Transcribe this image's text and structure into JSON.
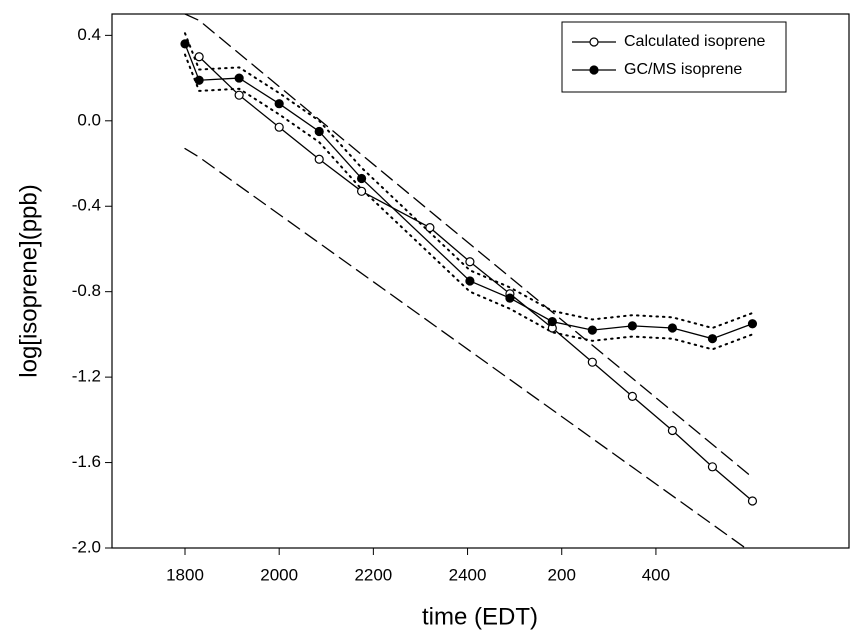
{
  "chart_data": {
    "type": "line",
    "xlabel": "time (EDT)",
    "ylabel": "log[isoprene](ppb)",
    "xlim": [
      1645,
      3210
    ],
    "ylim": [
      -2.0,
      0.5
    ],
    "xticks": [
      1800,
      2000,
      2200,
      2400,
      {
        "value": 2600,
        "label": "200"
      },
      {
        "value": 2800,
        "label": "400"
      }
    ],
    "yticks": [
      0.4,
      {
        "value": 0,
        "label": "0.0"
      },
      -0.4,
      -0.8,
      -1.2,
      -1.6,
      {
        "value": -2,
        "label": "-2.0"
      }
    ],
    "legend": "top-right",
    "series": [
      {
        "name": "Calculated isoprene",
        "color": "#000000",
        "marker": "open",
        "x": [
          1830,
          1915,
          2000,
          2085,
          2175,
          2320,
          2405,
          2490,
          2580,
          2665,
          2750,
          2835,
          2920,
          3005
        ],
        "values": [
          0.3,
          0.12,
          -0.03,
          -0.18,
          -0.33,
          -0.5,
          -0.66,
          -0.81,
          -0.97,
          -1.13,
          -1.29,
          -1.45,
          -1.62,
          -1.78
        ]
      },
      {
        "name": "GC/MS isoprene",
        "color": "#000000",
        "marker": "filled",
        "x": [
          1800,
          1830,
          1915,
          2000,
          2085,
          2175,
          2405,
          2490,
          2580,
          2665,
          2750,
          2835,
          2920,
          3005
        ],
        "values": [
          0.36,
          0.19,
          0.2,
          0.08,
          -0.05,
          -0.27,
          -0.75,
          -0.83,
          -0.94,
          -0.98,
          -0.96,
          -0.97,
          -1.02,
          -0.95
        ]
      }
    ],
    "bounds": [
      {
        "style": "dashed",
        "x": [
          1800,
          1830,
          3005
        ],
        "values": [
          0.5,
          0.47,
          -1.67
        ]
      },
      {
        "style": "dashed",
        "x": [
          1800,
          1830,
          2990
        ],
        "values": [
          -0.13,
          -0.17,
          -2.0
        ]
      },
      {
        "style": "dotted",
        "x": [
          1800,
          1830,
          1915,
          2000,
          2085,
          2175,
          2405,
          2490,
          2580,
          2665,
          2750,
          2835,
          2920,
          3005
        ],
        "values": [
          0.41,
          0.24,
          0.25,
          0.13,
          0.0,
          -0.22,
          -0.7,
          -0.78,
          -0.89,
          -0.93,
          -0.91,
          -0.92,
          -0.97,
          -0.9
        ]
      },
      {
        "style": "dotted",
        "x": [
          1800,
          1830,
          1915,
          2000,
          2085,
          2175,
          2405,
          2490,
          2580,
          2665,
          2750,
          2835,
          2920,
          3005
        ],
        "values": [
          0.31,
          0.14,
          0.15,
          0.03,
          -0.1,
          -0.32,
          -0.8,
          -0.88,
          -0.99,
          -1.03,
          -1.01,
          -1.02,
          -1.07,
          -1.0
        ]
      }
    ]
  }
}
